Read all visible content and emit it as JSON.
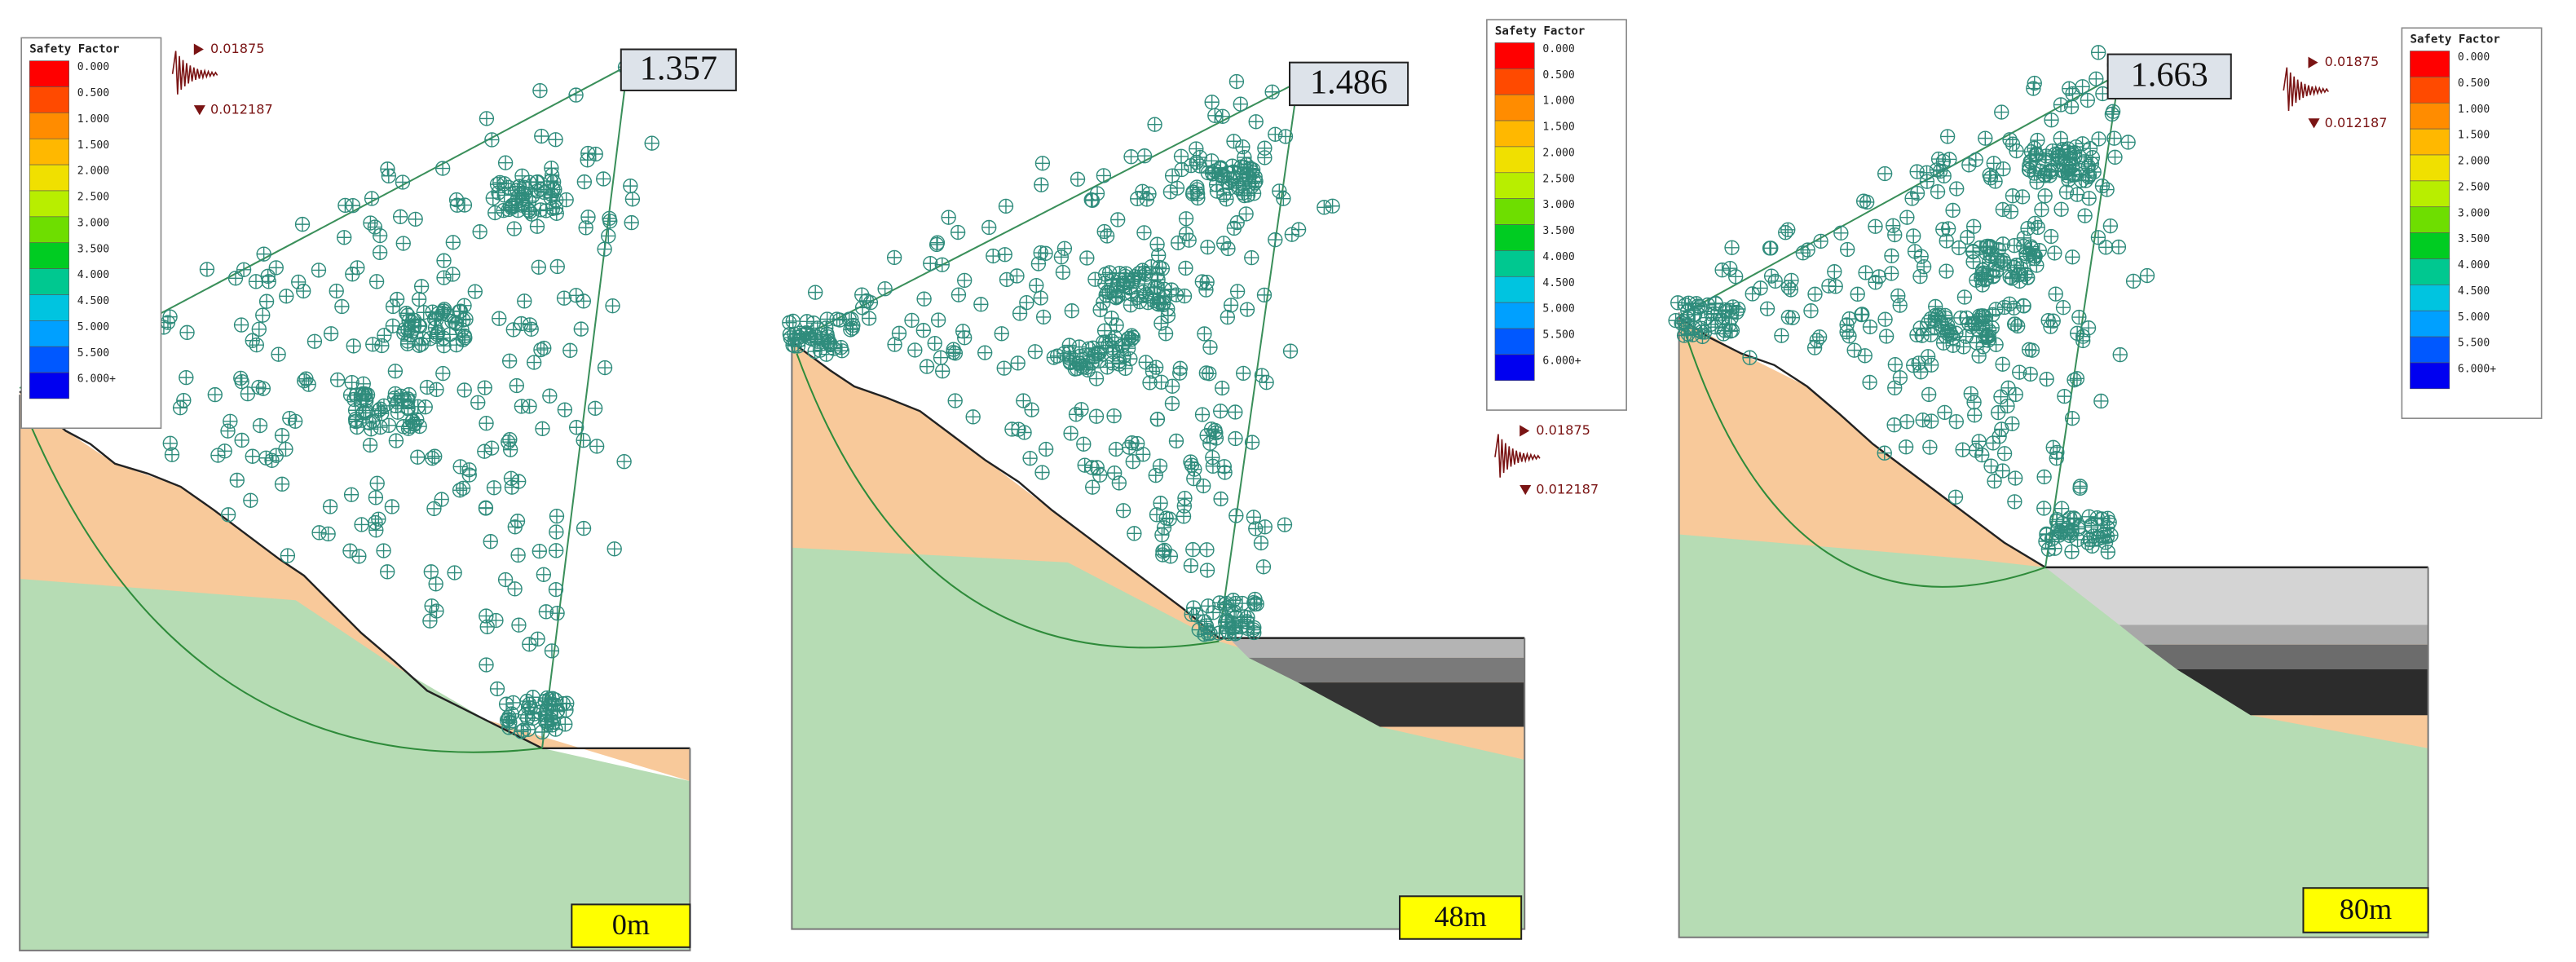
{
  "legend": {
    "title": "Safety Factor",
    "labels": [
      "0.000",
      "0.500",
      "1.000",
      "1.500",
      "2.000",
      "2.500",
      "3.000",
      "3.500",
      "4.000",
      "4.500",
      "5.000",
      "5.500",
      "6.000+"
    ]
  },
  "seismic": {
    "horizontal": "0.01875",
    "vertical": "0.012187"
  },
  "panels": [
    {
      "safety_factor": "1.357",
      "depth_label": "0m"
    },
    {
      "safety_factor": "1.486",
      "depth_label": "48m"
    },
    {
      "safety_factor": "1.663",
      "depth_label": "80m"
    }
  ]
}
